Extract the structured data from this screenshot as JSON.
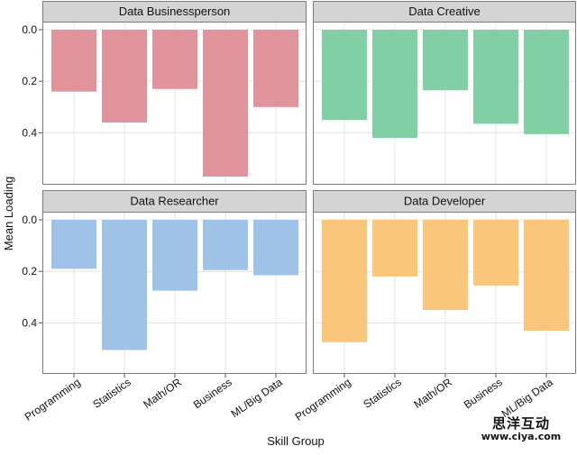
{
  "chart_data": {
    "type": "bar",
    "facet_layout": "2x2 grid",
    "ylabel": "Mean Loading",
    "xlabel": "Skill Group",
    "categories": [
      "Programming",
      "Statistics",
      "Math/OR",
      "Business",
      "ML/Big Data"
    ],
    "y_axis_reversed": true,
    "ylim": [
      0,
      0.57
    ],
    "yticks": [
      "0.0",
      "0.2",
      "0.4"
    ],
    "grid": true,
    "panels": [
      {
        "name": "Data Businessperson",
        "color": "#e0939a",
        "values": [
          0.24,
          0.36,
          0.23,
          0.57,
          0.3
        ]
      },
      {
        "name": "Data Creative",
        "color": "#82cfa5",
        "values": [
          0.35,
          0.42,
          0.235,
          0.365,
          0.405
        ]
      },
      {
        "name": "Data Researcher",
        "color": "#9fc3e6",
        "values": [
          0.19,
          0.505,
          0.275,
          0.195,
          0.215
        ]
      },
      {
        "name": "Data Developer",
        "color": "#f9c67c",
        "values": [
          0.475,
          0.22,
          0.35,
          0.255,
          0.43
        ]
      }
    ]
  },
  "watermark": {
    "text": "思洋互动",
    "url": "www.ciya.com"
  }
}
